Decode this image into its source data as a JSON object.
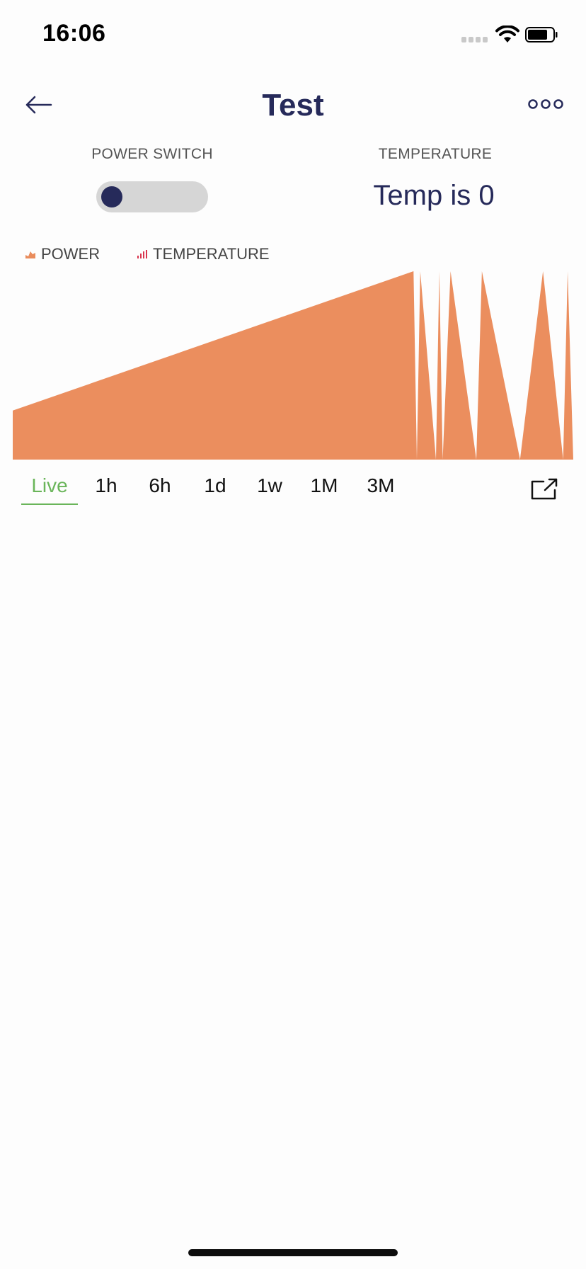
{
  "status_bar": {
    "time": "16:06"
  },
  "header": {
    "title": "Test",
    "back_icon": "arrow-left-icon",
    "more_icon": "more-horizontal-icon"
  },
  "controls": {
    "power_switch": {
      "label": "POWER SWITCH",
      "state": "off"
    },
    "temperature": {
      "label": "TEMPERATURE",
      "value_text": "Temp is 0"
    }
  },
  "legend": [
    {
      "label": "POWER",
      "icon": "area-chart-icon",
      "color": "#e98c5c"
    },
    {
      "label": "TEMPERATURE",
      "icon": "bar-chart-icon",
      "color": "#d9354e"
    }
  ],
  "chart_data": {
    "type": "area",
    "series": [
      {
        "name": "POWER",
        "color": "#eb8e5e",
        "points": [
          [
            0,
            0.26
          ],
          [
            0.715,
            1.0
          ],
          [
            0.721,
            0.0
          ],
          [
            0.727,
            1.0
          ],
          [
            0.755,
            0.0
          ],
          [
            0.761,
            1.0
          ],
          [
            0.767,
            0.0
          ],
          [
            0.781,
            1.0
          ],
          [
            0.827,
            0.0
          ],
          [
            0.837,
            1.0
          ],
          [
            0.905,
            0.0
          ],
          [
            0.946,
            1.0
          ],
          [
            0.982,
            0.0
          ],
          [
            0.99,
            1.0
          ],
          [
            1.0,
            0.0
          ]
        ]
      }
    ]
  },
  "range_tabs": {
    "selected": "Live",
    "items": [
      "Live",
      "1h",
      "6h",
      "1d",
      "1w",
      "1M",
      "3M"
    ]
  },
  "expand_icon": "external-link-icon",
  "colors": {
    "accent": "#262a5a",
    "selected_tab": "#6ab55a",
    "power_area": "#eb8e5e"
  }
}
